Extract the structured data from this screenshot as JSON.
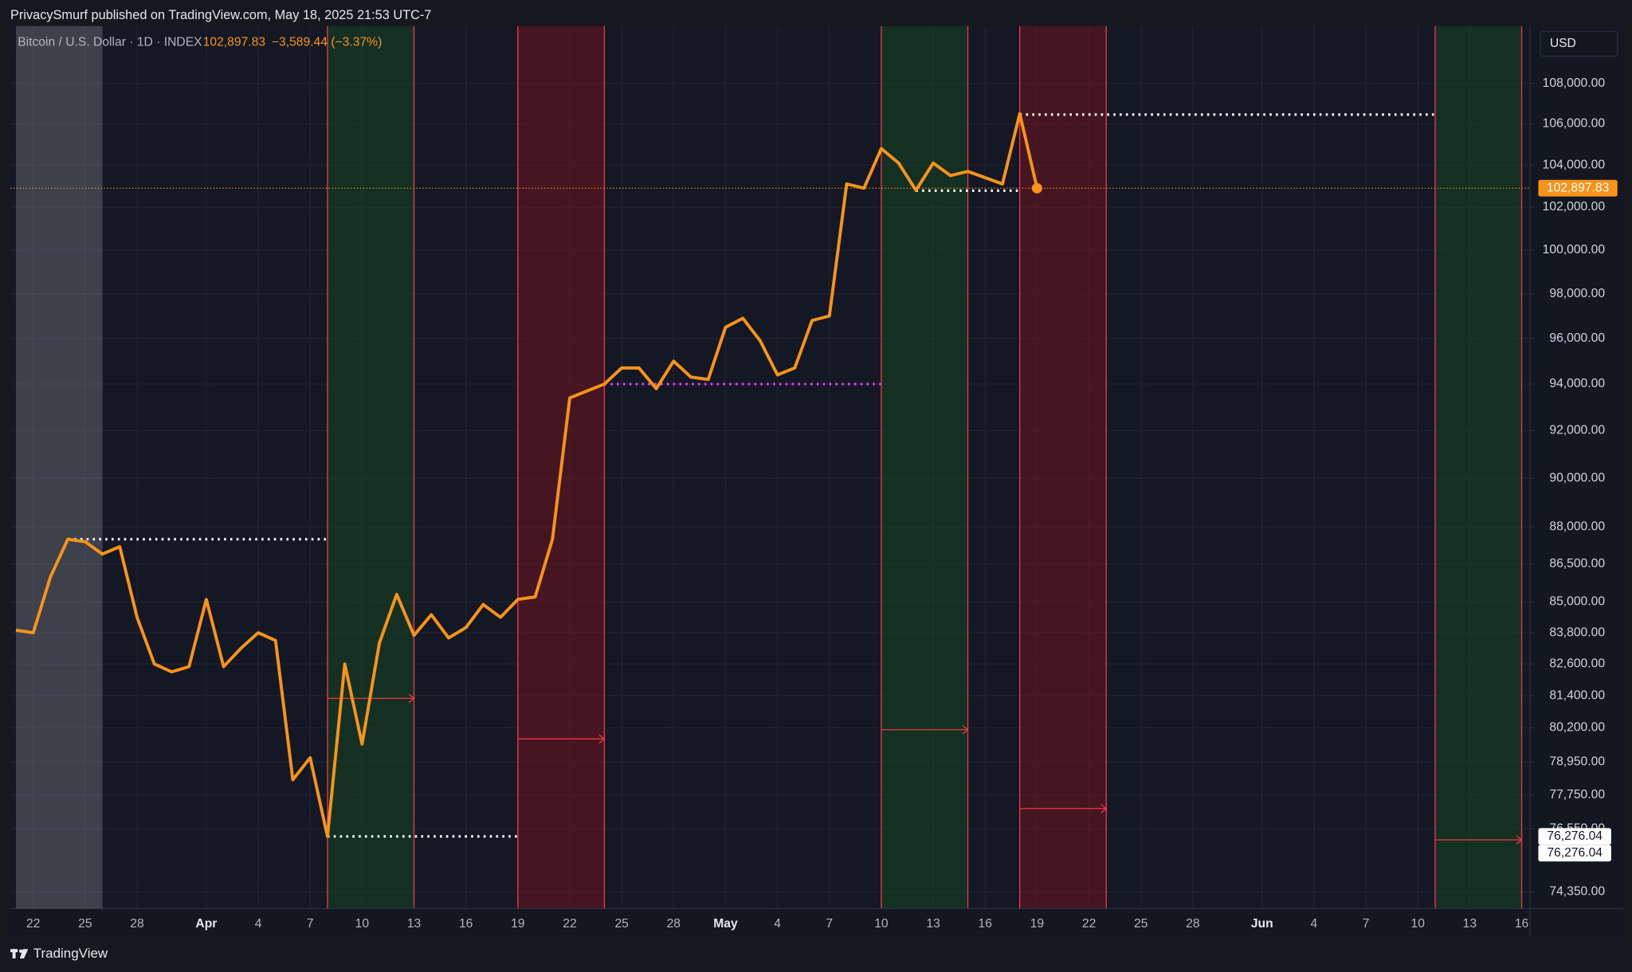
{
  "header": {
    "text": "PrivacySmurf published on TradingView.com, May 18, 2025 21:53 UTC-7"
  },
  "footer": {
    "brand": "TradingView"
  },
  "legend": {
    "symbol": "Bitcoin / U.S. Dollar · 1D · INDEX",
    "price": "102,897.83",
    "change": "−3,589.44 (−3.37%)"
  },
  "currency": "USD",
  "chart_data": {
    "type": "line",
    "log_scale": true,
    "grid": true,
    "color": "#f7931a",
    "categories": [
      null,
      "22",
      null,
      null,
      "25",
      null,
      null,
      "28",
      null,
      null,
      null,
      "Apr",
      null,
      null,
      "4",
      null,
      null,
      "7",
      null,
      null,
      "10",
      null,
      null,
      "13",
      null,
      null,
      "16",
      null,
      null,
      "19",
      null,
      null,
      "22",
      null,
      null,
      "25",
      null,
      null,
      "28",
      null,
      null,
      "May",
      null,
      null,
      "4",
      null,
      null,
      "7",
      null,
      null,
      "10",
      null,
      null,
      "13",
      null,
      null,
      "16",
      null,
      null,
      "19",
      null,
      null,
      "22",
      null,
      null,
      "25",
      null,
      null,
      "28",
      null,
      null,
      null,
      "Jun",
      null,
      null,
      "4",
      null,
      null,
      "7",
      null,
      null,
      "10",
      null,
      null,
      "13",
      null,
      null,
      "16"
    ],
    "values": [
      83900,
      83800,
      86000,
      87500,
      87400,
      86900,
      87200,
      84400,
      82600,
      82300,
      82500,
      85100,
      82500,
      83200,
      83800,
      83500,
      78300,
      79100,
      76276.04,
      82600,
      79600,
      83400,
      85300,
      83700,
      84500,
      83600,
      84000,
      84900,
      84400,
      85100,
      85200,
      87500,
      93400,
      93700,
      94000,
      94700,
      94700,
      93800,
      95000,
      94300,
      94200,
      96500,
      96900,
      95900,
      94400,
      94700,
      96800,
      97000,
      103100,
      102900,
      104800,
      104100,
      102800,
      104100,
      103500,
      103700,
      103400,
      103100,
      106500,
      102897.83,
      null,
      null,
      null,
      null,
      null,
      null,
      null,
      null,
      null,
      null,
      null,
      null,
      null,
      null,
      null,
      null,
      null,
      null,
      null,
      null,
      null,
      null,
      null,
      null,
      null,
      null,
      null,
      null
    ],
    "ylim": [
      73780,
      110900
    ],
    "yticks": [
      {
        "value": 74350,
        "label": "74,350.00"
      },
      {
        "value": 76550,
        "label": "76,550.00"
      },
      {
        "value": 77750,
        "label": "77,750.00"
      },
      {
        "value": 78950,
        "label": "78,950.00"
      },
      {
        "value": 80200,
        "label": "80,200.00"
      },
      {
        "value": 81400,
        "label": "81,400.00"
      },
      {
        "value": 82600,
        "label": "82,600.00"
      },
      {
        "value": 83800,
        "label": "83,800.00"
      },
      {
        "value": 85000,
        "label": "85,000.00"
      },
      {
        "value": 86500,
        "label": "86,500.00"
      },
      {
        "value": 88000,
        "label": "88,000.00"
      },
      {
        "value": 90000,
        "label": "90,000.00"
      },
      {
        "value": 92000,
        "label": "92,000.00"
      },
      {
        "value": 94000,
        "label": "94,000.00"
      },
      {
        "value": 96000,
        "label": "96,000.00"
      },
      {
        "value": 98000,
        "label": "98,000.00"
      },
      {
        "value": 100000,
        "label": "100,000.00"
      },
      {
        "value": 102000,
        "label": "102,000.00"
      },
      {
        "value": 104000,
        "label": "104,000.00"
      },
      {
        "value": 106000,
        "label": "106,000.00"
      },
      {
        "value": 108000,
        "label": "108,000.00"
      }
    ],
    "last_price": {
      "value": 102897.83,
      "label": "102,897.83"
    },
    "price_markers": [
      {
        "value": 76276.04,
        "label": "76,276.04"
      },
      {
        "value": 76276.04,
        "label": "76,276.04"
      }
    ],
    "bands": [
      {
        "start": 0,
        "end": 5,
        "color": "rgba(120,123,134,0.42)"
      },
      {
        "start": 18,
        "end": 23,
        "color": "rgba(20,70,35,0.55)",
        "edge": "#f23645"
      },
      {
        "start": 29,
        "end": 34,
        "color": "rgba(110,20,32,0.55)",
        "edge": "#f23645"
      },
      {
        "start": 50,
        "end": 55,
        "color": "rgba(20,70,35,0.55)",
        "edge": "#f23645"
      },
      {
        "start": 58,
        "end": 63,
        "color": "rgba(110,20,32,0.55)",
        "edge": "#f23645"
      },
      {
        "start": 82,
        "end": 87,
        "color": "rgba(20,70,35,0.55)",
        "edge": "#f23645"
      }
    ],
    "levels": [
      {
        "value": 87500,
        "start": 3,
        "end": 18,
        "color": "#ffffff"
      },
      {
        "value": 76276.04,
        "start": 18,
        "end": 29,
        "color": "#ffffff"
      },
      {
        "value": 94000,
        "start": 34,
        "end": 50,
        "color": "#e040fb"
      },
      {
        "value": 102780,
        "start": 52,
        "end": 58,
        "color": "#ffffff"
      },
      {
        "value": 106455,
        "start": 58,
        "end": 82,
        "color": "#ffffff"
      }
    ],
    "arrows": [
      {
        "value": 81300,
        "start": 18,
        "end": 23,
        "color": "#f23645"
      },
      {
        "value": 79790,
        "start": 29,
        "end": 34,
        "color": "#f23645"
      },
      {
        "value": 80130,
        "start": 50,
        "end": 55,
        "color": "#f23645"
      },
      {
        "value": 77265,
        "start": 58,
        "end": 63,
        "color": "#f23645"
      },
      {
        "value": 76157,
        "start": 82,
        "end": 87,
        "color": "#f23645"
      }
    ]
  }
}
